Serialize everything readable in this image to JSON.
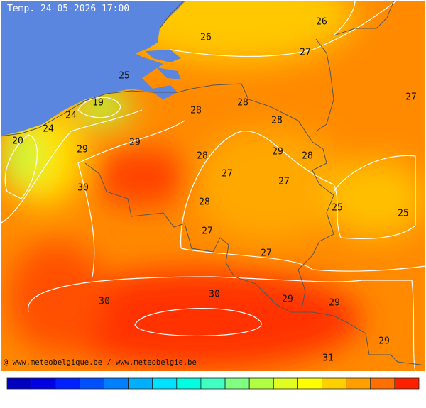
{
  "title": "Temp. 24-05-2026 17:00",
  "credit": "@ www.meteobelgique.be / www.meteobelgie.be",
  "labels": [
    "26",
    "26",
    "27",
    "25",
    "27",
    "19",
    "28",
    "28",
    "24",
    "28",
    "24",
    "20",
    "29",
    "29",
    "29",
    "28",
    "28",
    "27",
    "27",
    "30",
    "28",
    "25",
    "25",
    "27",
    "27",
    "30",
    "30",
    "29",
    "29",
    "29",
    "31"
  ],
  "legend_colors": [
    "#0000c0",
    "#0000e0",
    "#0020ff",
    "#0050ff",
    "#0080ff",
    "#00b0ff",
    "#00e0ff",
    "#00ffe0",
    "#40ffc0",
    "#80ff80",
    "#b0ff40",
    "#e0ff20",
    "#ffff00",
    "#ffd000",
    "#ffa000",
    "#ff7000",
    "#ff2000"
  ]
}
